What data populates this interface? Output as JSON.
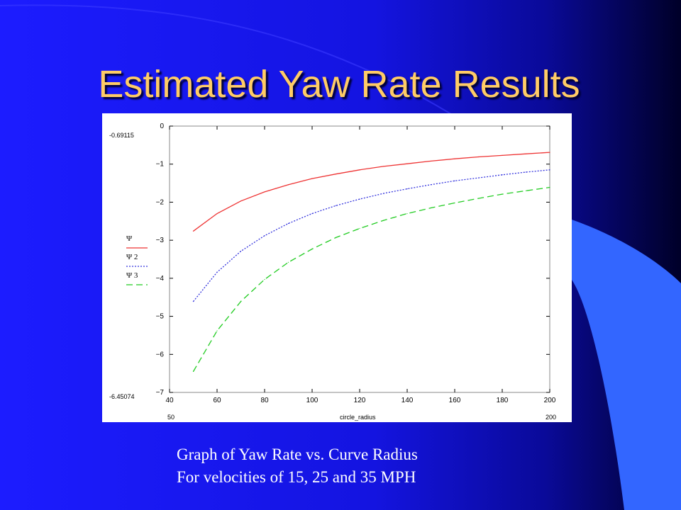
{
  "slide": {
    "title": "Estimated Yaw Rate Results",
    "caption_line1": "Graph of Yaw Rate vs. Curve Radius",
    "caption_line2": "For velocities of 15, 25 and 35 MPH",
    "colors": {
      "background": "#1a1aff",
      "title": "#ffcc66",
      "caption": "#ffffff"
    }
  },
  "chart_data": {
    "type": "line",
    "xlabel": "circle_radius",
    "xlim": [
      40,
      200
    ],
    "ylim": [
      -7,
      0
    ],
    "x_ticks": [
      "40",
      "60",
      "80",
      "100",
      "120",
      "140",
      "160",
      "180",
      "200"
    ],
    "y_ticks": [
      "0",
      "-1",
      "-2",
      "-3",
      "-4",
      "-5",
      "-6",
      "-7"
    ],
    "y_range_labels": {
      "max": "-0.69115",
      "min": "-6.45074"
    },
    "x_range_labels": {
      "min": "50",
      "max": "200"
    },
    "grid": false,
    "legend_position": "left",
    "x": [
      50,
      60,
      70,
      80,
      90,
      100,
      110,
      120,
      130,
      140,
      150,
      160,
      170,
      180,
      190,
      200
    ],
    "series": [
      {
        "name": "Ψ",
        "style": "solid",
        "color": "#ee3333",
        "values": [
          -2.76,
          -2.3,
          -1.97,
          -1.73,
          -1.54,
          -1.38,
          -1.26,
          -1.15,
          -1.06,
          -0.99,
          -0.92,
          -0.86,
          -0.81,
          -0.77,
          -0.73,
          -0.69
        ]
      },
      {
        "name": "Ψ 2",
        "style": "dotted",
        "color": "#3333dd",
        "values": [
          -4.61,
          -3.84,
          -3.29,
          -2.88,
          -2.56,
          -2.3,
          -2.09,
          -1.92,
          -1.77,
          -1.65,
          -1.54,
          -1.44,
          -1.36,
          -1.28,
          -1.21,
          -1.15
        ]
      },
      {
        "name": "Ψ 3",
        "style": "dashed",
        "color": "#22cc22",
        "values": [
          -6.45,
          -5.38,
          -4.61,
          -4.03,
          -3.58,
          -3.23,
          -2.93,
          -2.69,
          -2.48,
          -2.3,
          -2.15,
          -2.02,
          -1.9,
          -1.79,
          -1.7,
          -1.61
        ]
      }
    ]
  }
}
